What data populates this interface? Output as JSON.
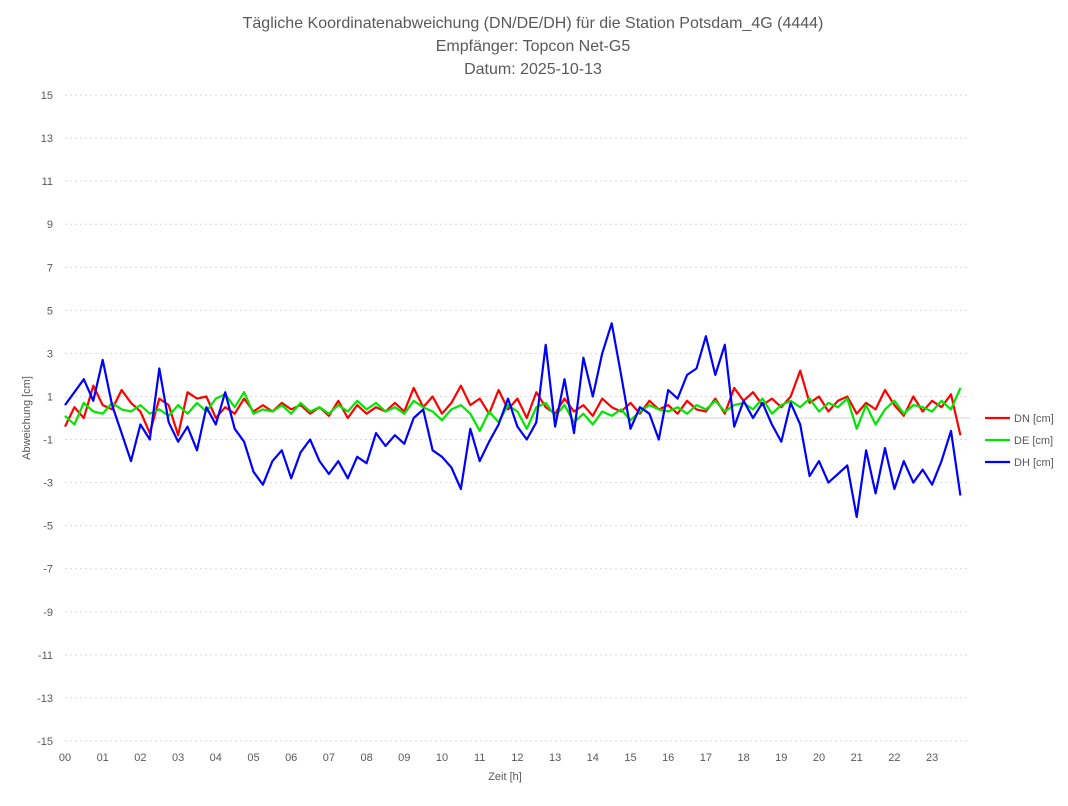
{
  "chart_data": {
    "type": "line",
    "title": [
      "Tägliche Koordinatenabweichung (DN/DE/DH) für die Station Potsdam_4G (4444)",
      "Empfänger: Topcon Net-G5",
      "Datum: 2025-10-13"
    ],
    "xlabel": "Zeit [h]",
    "ylabel": "Abweichung [cm]",
    "xlim": [
      0,
      24
    ],
    "ylim": [
      -15,
      15
    ],
    "x_ticks": [
      "00",
      "01",
      "02",
      "03",
      "04",
      "05",
      "06",
      "07",
      "08",
      "09",
      "10",
      "11",
      "12",
      "13",
      "14",
      "15",
      "16",
      "17",
      "18",
      "19",
      "20",
      "21",
      "22",
      "23"
    ],
    "y_ticks": [
      15,
      13,
      11,
      9,
      7,
      5,
      3,
      1,
      -1,
      -3,
      -5,
      -7,
      -9,
      -11,
      -13,
      -15
    ],
    "grid": true,
    "legend_position": "right",
    "x_step_hours": 0.25,
    "series": [
      {
        "name": "DN [cm]",
        "color": "#ff0000",
        "values": [
          -0.4,
          0.5,
          0.0,
          1.5,
          0.6,
          0.4,
          1.3,
          0.7,
          0.3,
          -0.7,
          0.9,
          0.6,
          -0.8,
          1.2,
          0.9,
          1.0,
          0.0,
          0.5,
          0.2,
          0.9,
          0.3,
          0.6,
          0.3,
          0.7,
          0.4,
          0.6,
          0.2,
          0.5,
          0.1,
          0.8,
          0.0,
          0.6,
          0.2,
          0.5,
          0.3,
          0.7,
          0.3,
          1.4,
          0.5,
          1.0,
          0.2,
          0.7,
          1.5,
          0.6,
          0.9,
          0.2,
          1.3,
          0.4,
          0.9,
          0.0,
          1.2,
          0.5,
          0.2,
          0.9,
          0.3,
          0.6,
          0.1,
          0.9,
          0.5,
          0.3,
          0.7,
          0.2,
          0.8,
          0.4,
          0.6,
          0.2,
          0.8,
          0.4,
          0.3,
          0.9,
          0.2,
          1.4,
          0.8,
          1.2,
          0.6,
          0.9,
          0.5,
          1.0,
          2.2,
          0.7,
          1.0,
          0.3,
          0.8,
          1.0,
          0.2,
          0.7,
          0.4,
          1.3,
          0.6,
          0.1,
          1.0,
          0.3,
          0.8,
          0.5,
          1.1,
          -0.8
        ]
      },
      {
        "name": "DE [cm]",
        "color": "#00e600",
        "values": [
          0.1,
          -0.3,
          0.7,
          0.3,
          0.2,
          0.7,
          0.4,
          0.3,
          0.6,
          0.2,
          0.4,
          0.1,
          0.6,
          0.2,
          0.7,
          0.3,
          0.9,
          1.1,
          0.5,
          1.2,
          0.2,
          0.4,
          0.3,
          0.6,
          0.2,
          0.7,
          0.3,
          0.5,
          0.2,
          0.6,
          0.3,
          0.8,
          0.4,
          0.7,
          0.3,
          0.5,
          0.2,
          0.8,
          0.5,
          0.3,
          -0.1,
          0.4,
          0.6,
          0.2,
          -0.6,
          0.3,
          -0.2,
          0.6,
          0.3,
          -0.5,
          0.5,
          0.7,
          0.1,
          0.6,
          -0.2,
          0.2,
          -0.3,
          0.3,
          0.1,
          0.4,
          -0.1,
          0.3,
          0.6,
          0.4,
          0.3,
          0.5,
          0.2,
          0.6,
          0.4,
          0.8,
          0.3,
          0.6,
          0.7,
          0.4,
          0.9,
          0.2,
          0.6,
          0.8,
          0.5,
          0.9,
          0.3,
          0.7,
          0.5,
          0.9,
          -0.5,
          0.6,
          -0.3,
          0.4,
          0.8,
          0.2,
          0.6,
          0.5,
          0.3,
          0.8,
          0.4,
          1.4
        ]
      },
      {
        "name": "DH [cm]",
        "color": "#0000ff",
        "values": [
          0.6,
          1.2,
          1.8,
          0.8,
          2.7,
          0.6,
          -0.7,
          -2.0,
          -0.3,
          -1.0,
          2.3,
          -0.2,
          -1.1,
          -0.4,
          -1.5,
          0.5,
          -0.3,
          1.2,
          -0.5,
          -1.1,
          -2.5,
          -3.1,
          -2.0,
          -1.5,
          -2.8,
          -1.6,
          -1.0,
          -2.0,
          -2.6,
          -2.0,
          -2.8,
          -1.8,
          -2.1,
          -0.7,
          -1.3,
          -0.8,
          -1.2,
          0.0,
          0.4,
          -1.5,
          -1.8,
          -2.3,
          -3.3,
          -0.5,
          -2.0,
          -1.1,
          -0.3,
          0.9,
          -0.4,
          -1.0,
          -0.2,
          3.4,
          -0.4,
          1.8,
          -0.7,
          2.8,
          1.0,
          3.0,
          4.4,
          2.0,
          -0.5,
          0.5,
          0.2,
          -1.0,
          1.3,
          0.9,
          2.0,
          2.3,
          3.8,
          2.0,
          3.4,
          -0.4,
          0.8,
          0.0,
          0.7,
          -0.3,
          -1.1,
          0.7,
          -0.3,
          -2.7,
          -2.0,
          -3.0,
          -2.6,
          -2.2,
          -4.6,
          -1.5,
          -3.5,
          -1.4,
          -3.3,
          -2.0,
          -3.0,
          -2.4,
          -3.1,
          -2.0,
          -0.6,
          -3.6
        ]
      }
    ]
  }
}
